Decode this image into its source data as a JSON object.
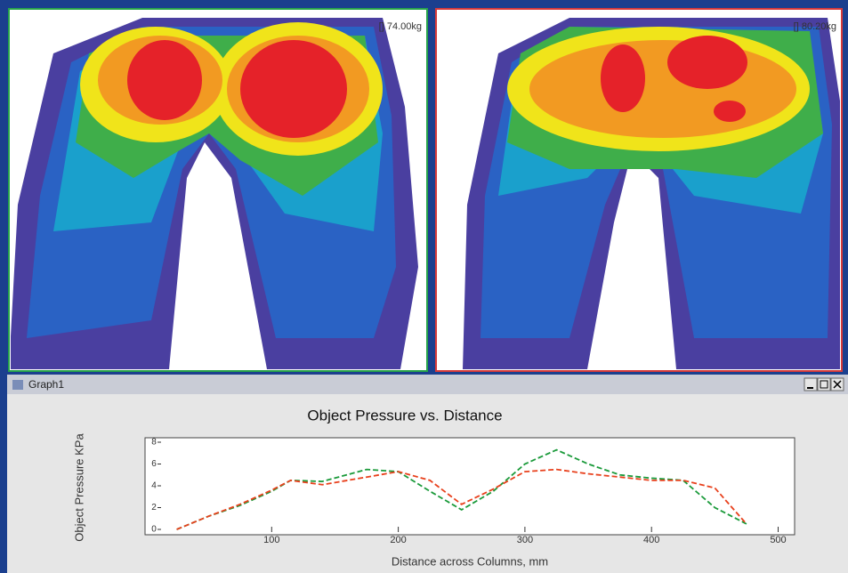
{
  "panes": [
    {
      "label": "[] 74.00kg"
    },
    {
      "label": "[] 80.20kg"
    }
  ],
  "window": {
    "title": "Graph1"
  },
  "chart_data": {
    "type": "line",
    "title": "Object Pressure vs. Distance",
    "ylabel": "Object Pressure KPa",
    "xlabel": "Distance across Columns, mm",
    "x": [
      25,
      50,
      75,
      100,
      115,
      140,
      175,
      200,
      225,
      250,
      275,
      300,
      325,
      350,
      375,
      400,
      425,
      450,
      475
    ],
    "series": [
      {
        "color": "#1a9a3a",
        "values": [
          0,
          1.2,
          2.2,
          3.5,
          4.5,
          4.4,
          5.5,
          5.3,
          3.5,
          1.8,
          3.5,
          6,
          7.3,
          6,
          5,
          4.7,
          4.5,
          2,
          0.5
        ]
      },
      {
        "color": "#e8401c",
        "values": [
          0,
          1.2,
          2.3,
          3.6,
          4.5,
          4.1,
          4.8,
          5.3,
          4.5,
          2.3,
          3.7,
          5.3,
          5.5,
          5.1,
          4.8,
          4.5,
          4.5,
          3.8,
          0.5
        ]
      }
    ],
    "xlim": [
      0,
      513
    ],
    "xticks": [
      100,
      200,
      300,
      400,
      500
    ],
    "ylim": [
      0,
      8
    ],
    "yticks": [
      0,
      2,
      4,
      6,
      8
    ],
    "grid": false
  }
}
